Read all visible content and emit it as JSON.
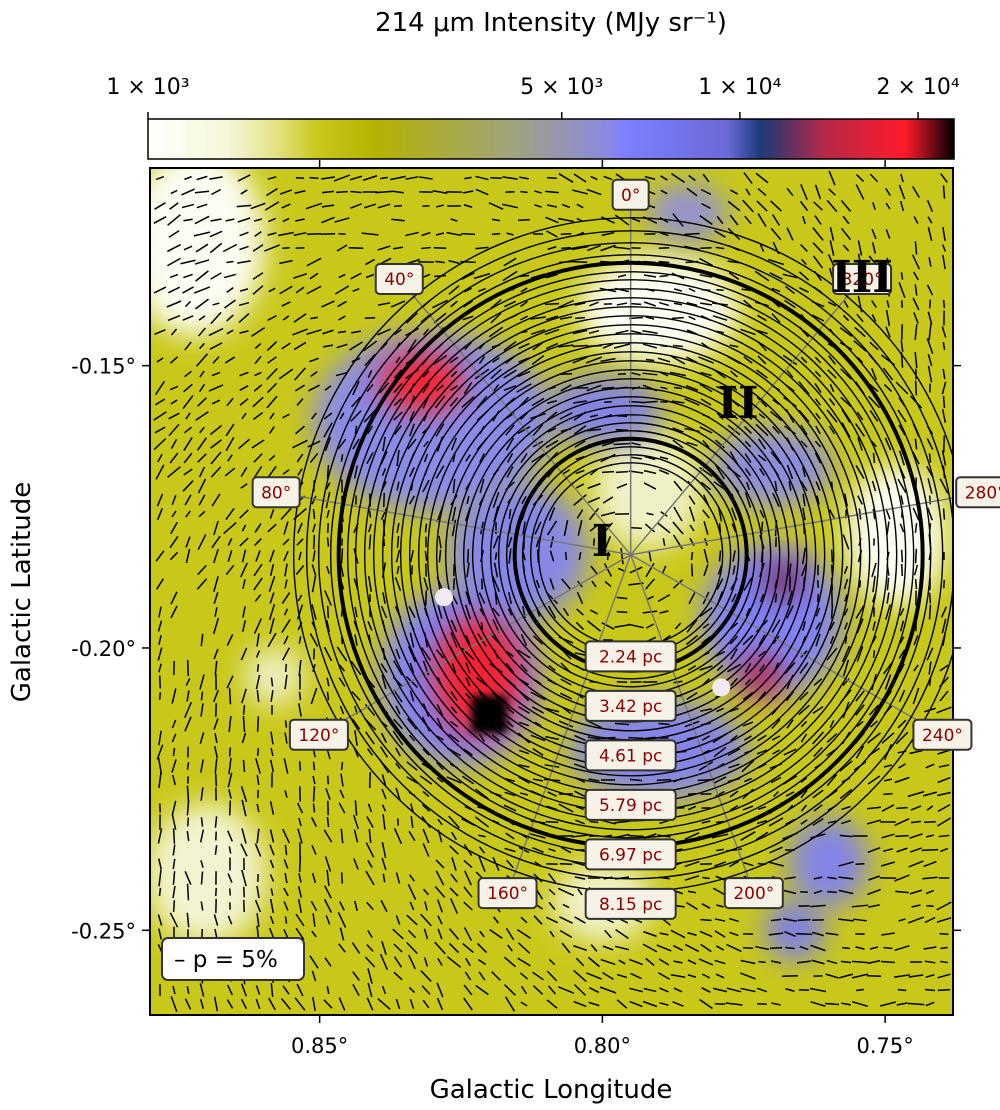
{
  "chart_data": {
    "type": "heatmap",
    "colorbar": {
      "title": "214 μm Intensity (MJy sr⁻¹)",
      "ticks": [
        {
          "value": 1000,
          "label": "1 × 10³"
        },
        {
          "value": 5000,
          "label": "5 × 10³"
        },
        {
          "value": 10000,
          "label": "1 × 10⁴"
        },
        {
          "value": 20000,
          "label": "2 × 10⁴"
        }
      ],
      "colors": [
        "#ffffff",
        "#f6f6d8",
        "#e2e283",
        "#c8c81a",
        "#b3b300",
        "#a0a37a",
        "#8a8ae0",
        "#7f7fff",
        "#6a6ad8",
        "#1c3a78",
        "#b72848",
        "#ff1a2a",
        "#000000"
      ]
    },
    "xlabel": "Galactic Longitude",
    "ylabel": "Galactic Latitude",
    "xlim": [
      0.88,
      0.738
    ],
    "ylim": [
      -0.265,
      -0.115
    ],
    "xticks": [
      {
        "value": 0.85,
        "label": "0.85°"
      },
      {
        "value": 0.8,
        "label": "0.80°"
      },
      {
        "value": 0.75,
        "label": "0.75°"
      }
    ],
    "yticks": [
      {
        "value": -0.15,
        "label": "-0.15°"
      },
      {
        "value": -0.2,
        "label": "-0.20°"
      },
      {
        "value": -0.25,
        "label": "-0.25°"
      }
    ],
    "center": {
      "l": 0.795,
      "b": -0.1835
    },
    "radial_labels": [
      "2.24 pc",
      "3.42 pc",
      "4.61 pc",
      "5.79 pc",
      "6.97 pc",
      "8.15 pc"
    ],
    "angle_labels": [
      "0°",
      "40°",
      "80°",
      "120°",
      "160°",
      "200°",
      "240°",
      "280°",
      "320°"
    ],
    "regions": [
      "I",
      "II",
      "III"
    ],
    "legend": "– p = 5%",
    "intensity_features": [
      {
        "l": 0.832,
        "b": -0.153,
        "level": "high (red)"
      },
      {
        "l": 0.822,
        "b": -0.205,
        "level": "high (red)"
      },
      {
        "l": 0.82,
        "b": -0.212,
        "level": "peak (black)"
      },
      {
        "l": 0.772,
        "b": -0.205,
        "level": "moderate (dark red)"
      },
      {
        "l": 0.768,
        "b": -0.188,
        "level": "moderate (dark)"
      },
      {
        "l": 0.785,
        "b": -0.135,
        "level": "low (white)"
      },
      {
        "l": 0.875,
        "b": -0.13,
        "level": "low (white)"
      },
      {
        "l": 0.76,
        "b": -0.248,
        "level": "medium (blue)"
      }
    ],
    "markers": [
      {
        "l": 0.828,
        "b": -0.191
      },
      {
        "l": 0.779,
        "b": -0.207
      }
    ]
  }
}
